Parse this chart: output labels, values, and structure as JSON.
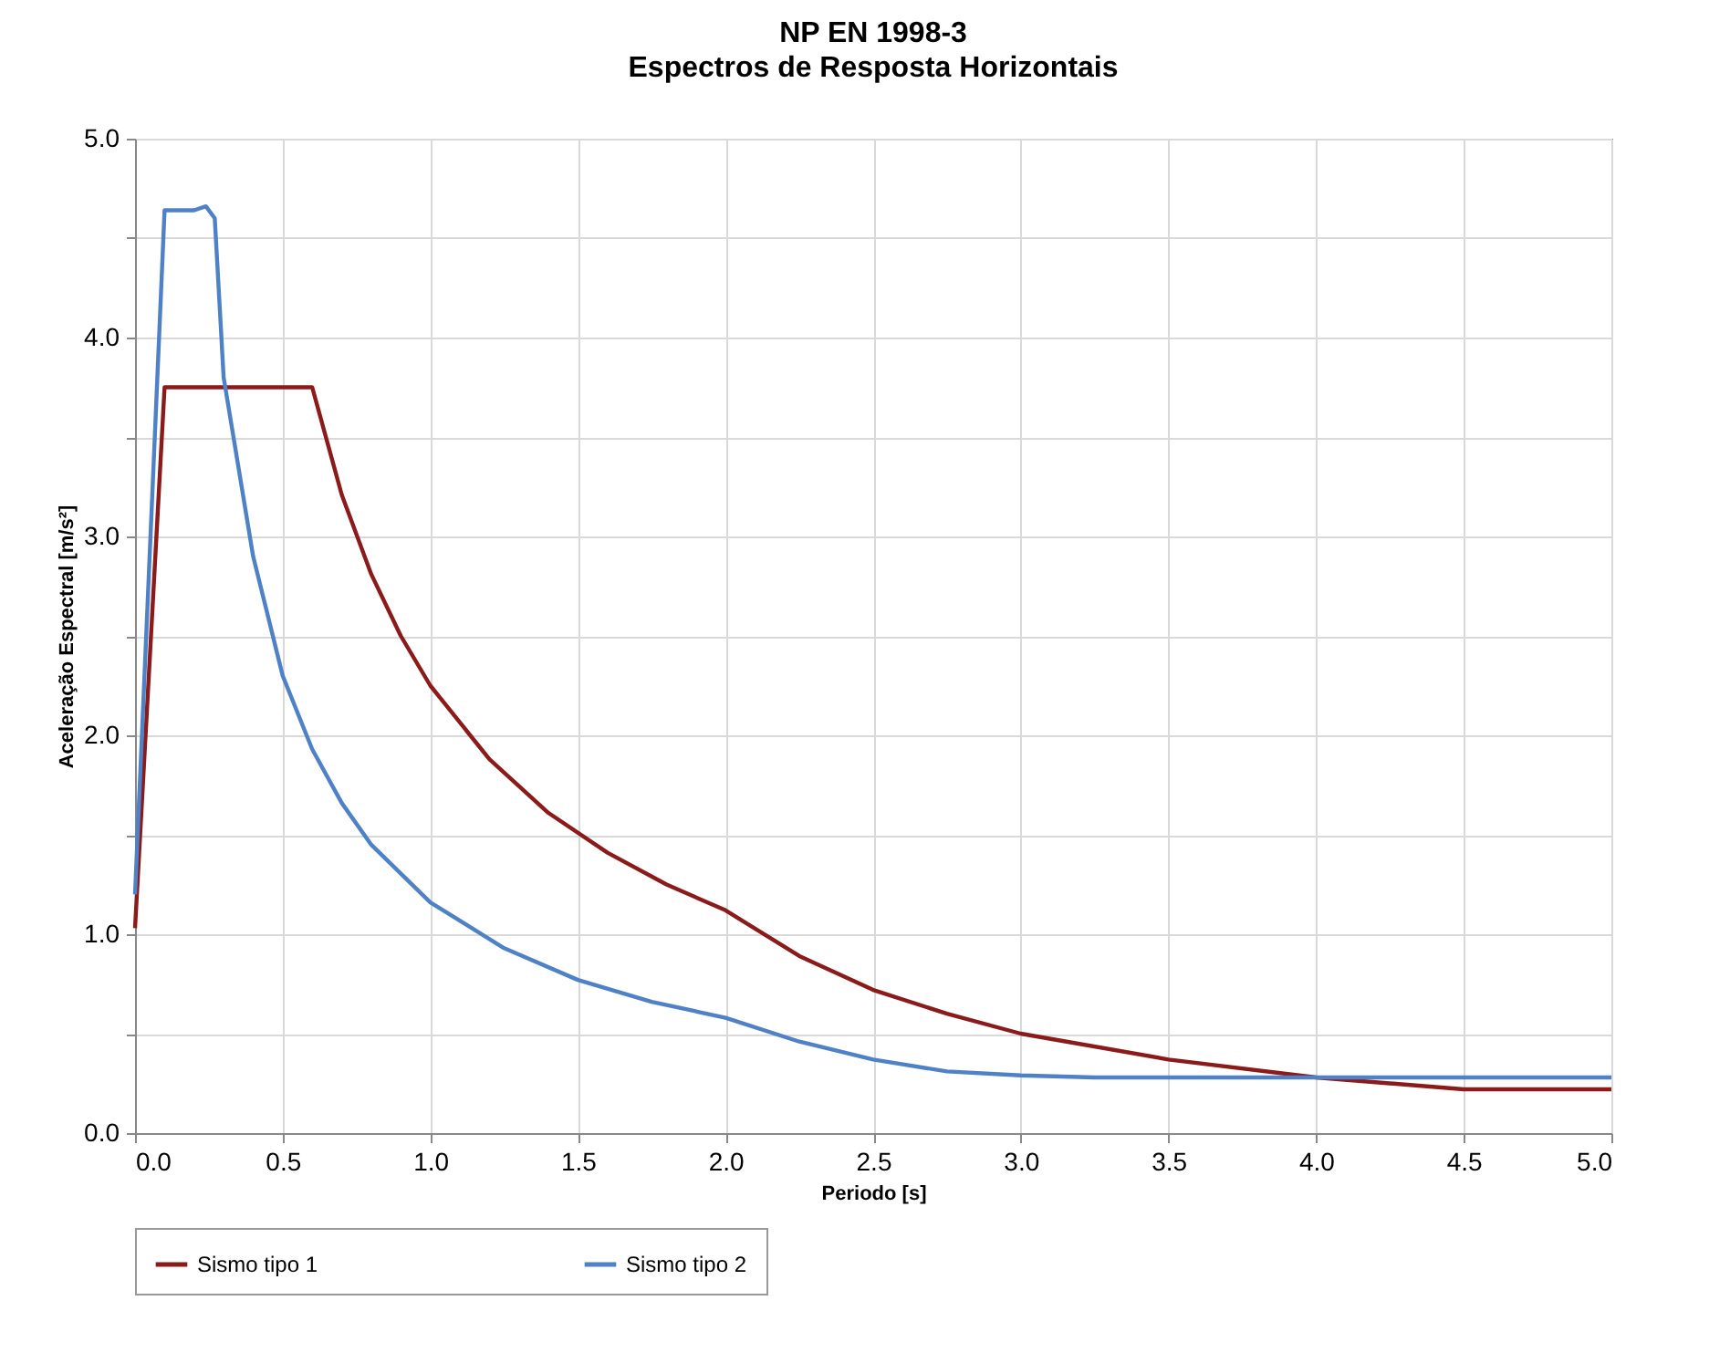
{
  "chart_data": {
    "type": "line",
    "title": "NP EN 1998-3",
    "subtitle": "Espectros de Resposta Horizontais",
    "xlabel": "Periodo [s]",
    "ylabel": "Aceleração Espectral [m/s²]",
    "xlim": [
      0,
      5
    ],
    "ylim": [
      0,
      5
    ],
    "xticks": [
      {
        "value": 0,
        "label": "0.0"
      },
      {
        "value": 0.5,
        "label": "0.5"
      },
      {
        "value": 1,
        "label": "1.0"
      },
      {
        "value": 1.5,
        "label": "1.5"
      },
      {
        "value": 2,
        "label": "2.0"
      },
      {
        "value": 2.5,
        "label": "2.5"
      },
      {
        "value": 3,
        "label": "3.0"
      },
      {
        "value": 3.5,
        "label": "3.5"
      },
      {
        "value": 4,
        "label": "4.0"
      },
      {
        "value": 4.5,
        "label": "4.5"
      },
      {
        "value": 5,
        "label": "5.0"
      }
    ],
    "yticks": [
      {
        "value": 0,
        "label": "0.0"
      },
      {
        "value": 0.5,
        "label": null
      },
      {
        "value": 1,
        "label": "1.0"
      },
      {
        "value": 1.5,
        "label": null
      },
      {
        "value": 2,
        "label": "2.0"
      },
      {
        "value": 2.5,
        "label": null
      },
      {
        "value": 3,
        "label": "3.0"
      },
      {
        "value": 3.5,
        "label": null
      },
      {
        "value": 4,
        "label": "4.0"
      },
      {
        "value": 4.5,
        "label": null
      },
      {
        "value": 5,
        "label": "5.0"
      }
    ],
    "grid": true,
    "legend": "bottom",
    "marker": "none",
    "line_style": "solid",
    "series": [
      {
        "name": "Sismo tipo 1",
        "color": "#8b1a1a",
        "x": [
          0,
          0.1,
          0.6,
          0.7,
          0.8,
          0.9,
          1.0,
          1.2,
          1.4,
          1.6,
          1.8,
          2.0,
          2.25,
          2.5,
          2.75,
          3.0,
          3.5,
          4.0,
          4.5,
          5.0
        ],
        "values": [
          1.03,
          3.75,
          3.75,
          3.21,
          2.81,
          2.5,
          2.25,
          1.88,
          1.61,
          1.41,
          1.25,
          1.12,
          0.89,
          0.72,
          0.6,
          0.5,
          0.37,
          0.28,
          0.22,
          0.22
        ]
      },
      {
        "name": "Sismo tipo 2",
        "color": "#4f81c6",
        "x": [
          0,
          0.1,
          0.2,
          0.24,
          0.27,
          0.3,
          0.4,
          0.5,
          0.6,
          0.7,
          0.8,
          1.0,
          1.25,
          1.5,
          1.75,
          2.0,
          2.25,
          2.5,
          2.75,
          3.0,
          3.25,
          5.0
        ],
        "values": [
          1.2,
          4.64,
          4.64,
          4.66,
          4.6,
          3.8,
          2.9,
          2.3,
          1.93,
          1.66,
          1.45,
          1.16,
          0.93,
          0.77,
          0.66,
          0.58,
          0.46,
          0.37,
          0.31,
          0.29,
          0.28,
          0.28
        ]
      }
    ]
  }
}
